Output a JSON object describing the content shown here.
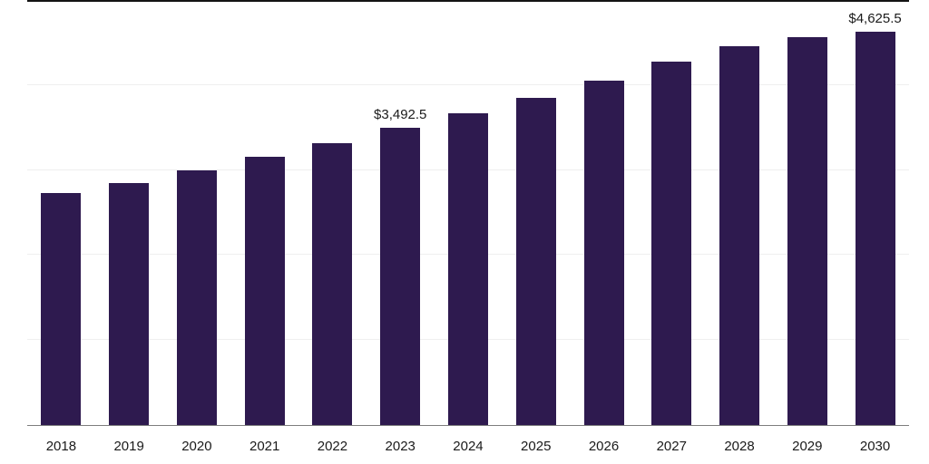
{
  "chart_data": {
    "type": "bar",
    "title": "",
    "xlabel": "",
    "ylabel": "",
    "categories": [
      "2018",
      "2019",
      "2020",
      "2021",
      "2022",
      "2023",
      "2024",
      "2025",
      "2026",
      "2027",
      "2028",
      "2029",
      "2030"
    ],
    "values": [
      2725.0,
      2850.0,
      3000.0,
      3160.0,
      3320.0,
      3492.5,
      3670.0,
      3850.0,
      4050.0,
      4275.0,
      4460.0,
      4560.0,
      4625.5
    ],
    "ylim": [
      0,
      5000
    ],
    "grid_step": 1000,
    "grid": "horizontal",
    "legend": "none",
    "bar_color": "#2e1a4f",
    "axis_line_color": "#7d7d7d",
    "text_color": "#1a1a1a",
    "data_labels": [
      {
        "category": "2023",
        "text": "$3,492.5"
      },
      {
        "category": "2030",
        "text": "$4,625.5"
      }
    ]
  }
}
